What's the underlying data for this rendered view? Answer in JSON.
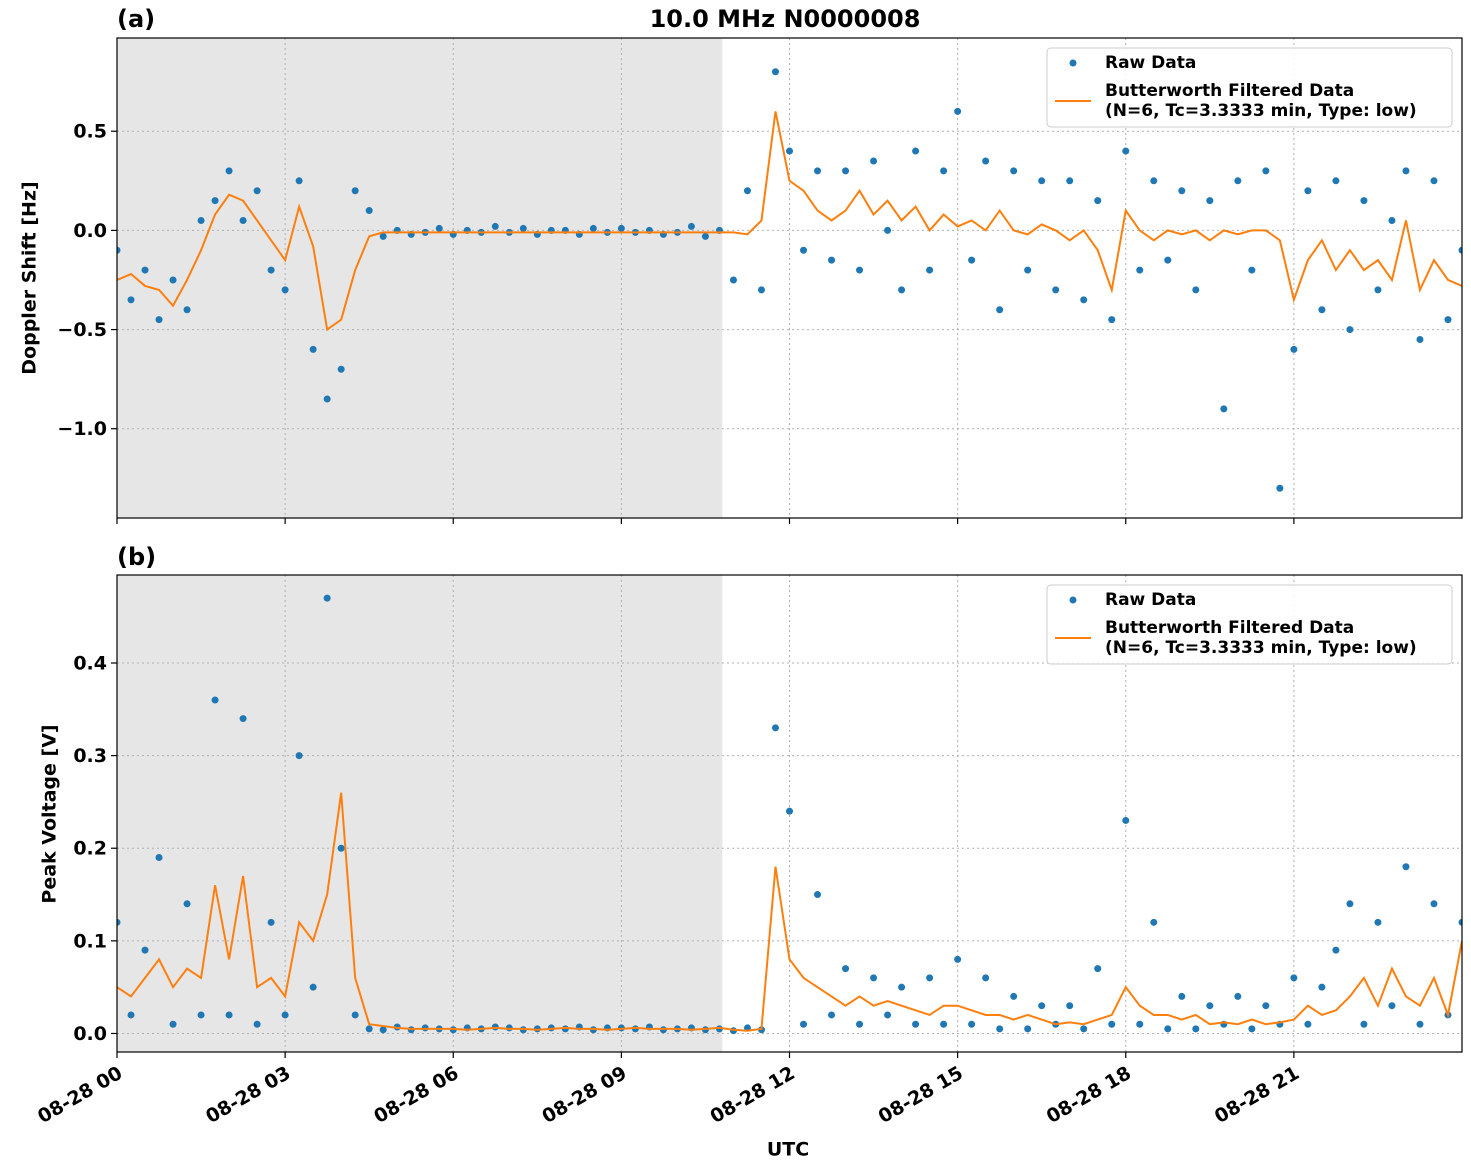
{
  "chart_data": [
    {
      "type": "line",
      "title": "10.0 MHz N0000008",
      "panel_label": "(a)",
      "ylabel": "Doppler Shift [Hz]",
      "xlim": [
        0,
        24
      ],
      "xticks": [
        0,
        3,
        6,
        9,
        12,
        15,
        18,
        21
      ],
      "ylim": [
        -1.45,
        0.97
      ],
      "yticks": [
        {
          "value": -1.0,
          "label": "−1.0"
        },
        {
          "value": -0.5,
          "label": "−0.5"
        },
        {
          "value": 0.0,
          "label": "0.0"
        },
        {
          "value": 0.5,
          "label": "0.5"
        }
      ],
      "grid": true,
      "legend": "upper right",
      "shaded_span": [
        0,
        10.8
      ],
      "shade_color": "#e6e6e6",
      "x": [
        0,
        0.25,
        0.5,
        0.75,
        1,
        1.25,
        1.5,
        1.75,
        2,
        2.25,
        2.5,
        2.75,
        3,
        3.25,
        3.5,
        3.75,
        4,
        4.25,
        4.5,
        4.75,
        5,
        5.25,
        5.5,
        5.75,
        6,
        6.25,
        6.5,
        6.75,
        7,
        7.25,
        7.5,
        7.75,
        8,
        8.25,
        8.5,
        8.75,
        9,
        9.25,
        9.5,
        9.75,
        10,
        10.25,
        10.5,
        10.75,
        11,
        11.25,
        11.5,
        11.75,
        12,
        12.25,
        12.5,
        12.75,
        13,
        13.25,
        13.5,
        13.75,
        14,
        14.25,
        14.5,
        14.75,
        15,
        15.25,
        15.5,
        15.75,
        16,
        16.25,
        16.5,
        16.75,
        17,
        17.25,
        17.5,
        17.75,
        18,
        18.25,
        18.5,
        18.75,
        19,
        19.25,
        19.5,
        19.75,
        20,
        20.25,
        20.5,
        20.75,
        21,
        21.25,
        21.5,
        21.75,
        22,
        22.25,
        22.5,
        22.75,
        23,
        23.25,
        23.5,
        23.75,
        24
      ],
      "series": [
        {
          "name": "Raw Data",
          "type": "scatter",
          "color": "#1f77b4",
          "values": [
            -0.1,
            -0.35,
            -0.2,
            -0.45,
            -0.25,
            -0.4,
            0.05,
            0.15,
            0.3,
            0.05,
            0.2,
            -0.2,
            -0.3,
            0.25,
            -0.6,
            -0.85,
            -0.7,
            0.2,
            0.1,
            -0.03,
            0.0,
            -0.02,
            -0.01,
            0.01,
            -0.02,
            0.0,
            -0.01,
            0.02,
            -0.01,
            0.01,
            -0.02,
            0.0,
            0.0,
            -0.02,
            0.01,
            -0.01,
            0.01,
            -0.01,
            0.0,
            -0.02,
            -0.01,
            0.02,
            -0.03,
            0.0,
            -0.25,
            0.2,
            -0.3,
            0.8,
            0.4,
            -0.1,
            0.3,
            -0.15,
            0.3,
            -0.2,
            0.35,
            0.0,
            -0.3,
            0.4,
            -0.2,
            0.3,
            0.6,
            -0.15,
            0.35,
            -0.4,
            0.3,
            -0.2,
            0.25,
            -0.3,
            0.25,
            -0.35,
            0.15,
            -0.45,
            0.4,
            -0.2,
            0.25,
            -0.15,
            0.2,
            -0.3,
            0.15,
            -0.9,
            0.25,
            -0.2,
            0.3,
            -1.3,
            -0.6,
            0.2,
            -0.4,
            0.25,
            -0.5,
            0.15,
            -0.3,
            0.05,
            0.3,
            -0.55,
            0.25,
            -0.45,
            -0.1
          ]
        },
        {
          "name": "Butterworth Filtered Data\n(N=6, Tc=3.3333 min, Type: low)",
          "type": "line",
          "color": "#ff7f0e",
          "values": [
            -0.25,
            -0.22,
            -0.28,
            -0.3,
            -0.38,
            -0.25,
            -0.1,
            0.08,
            0.18,
            0.15,
            0.05,
            -0.05,
            -0.15,
            0.12,
            -0.08,
            -0.5,
            -0.45,
            -0.2,
            -0.03,
            -0.01,
            -0.01,
            -0.01,
            -0.01,
            -0.01,
            -0.01,
            -0.01,
            -0.01,
            -0.01,
            -0.01,
            -0.01,
            -0.01,
            -0.01,
            -0.01,
            -0.01,
            -0.01,
            -0.01,
            -0.01,
            -0.01,
            -0.01,
            -0.01,
            -0.01,
            -0.01,
            -0.01,
            -0.01,
            -0.01,
            -0.02,
            0.05,
            0.6,
            0.25,
            0.2,
            0.1,
            0.05,
            0.1,
            0.2,
            0.08,
            0.15,
            0.05,
            0.12,
            0.0,
            0.08,
            0.02,
            0.05,
            0.0,
            0.1,
            0.0,
            -0.02,
            0.03,
            0.0,
            -0.05,
            0.0,
            -0.1,
            -0.3,
            0.1,
            0.0,
            -0.05,
            0.0,
            -0.02,
            0.0,
            -0.05,
            0.0,
            -0.02,
            0.0,
            0.0,
            -0.05,
            -0.35,
            -0.15,
            -0.05,
            -0.2,
            -0.1,
            -0.2,
            -0.15,
            -0.25,
            0.05,
            -0.3,
            -0.15,
            -0.25,
            -0.28
          ]
        }
      ]
    },
    {
      "type": "line",
      "panel_label": "(b)",
      "ylabel": "Peak Voltage [V]",
      "xlabel": "UTC",
      "xlim": [
        0,
        24
      ],
      "xticks": [
        {
          "value": 0,
          "label": "08-28 00"
        },
        {
          "value": 3,
          "label": "08-28 03"
        },
        {
          "value": 6,
          "label": "08-28 06"
        },
        {
          "value": 9,
          "label": "08-28 09"
        },
        {
          "value": 12,
          "label": "08-28 12"
        },
        {
          "value": 15,
          "label": "08-28 15"
        },
        {
          "value": 18,
          "label": "08-28 18"
        },
        {
          "value": 21,
          "label": "08-28 21"
        }
      ],
      "ylim": [
        -0.02,
        0.495
      ],
      "yticks": [
        {
          "value": 0.0,
          "label": "0.0"
        },
        0.1,
        0.2,
        0.3,
        0.4
      ],
      "grid": true,
      "legend": "upper right",
      "shaded_span": [
        0,
        10.8
      ],
      "shade_color": "#e6e6e6",
      "x": [
        0,
        0.25,
        0.5,
        0.75,
        1,
        1.25,
        1.5,
        1.75,
        2,
        2.25,
        2.5,
        2.75,
        3,
        3.25,
        3.5,
        3.75,
        4,
        4.25,
        4.5,
        4.75,
        5,
        5.25,
        5.5,
        5.75,
        6,
        6.25,
        6.5,
        6.75,
        7,
        7.25,
        7.5,
        7.75,
        8,
        8.25,
        8.5,
        8.75,
        9,
        9.25,
        9.5,
        9.75,
        10,
        10.25,
        10.5,
        10.75,
        11,
        11.25,
        11.5,
        11.75,
        12,
        12.25,
        12.5,
        12.75,
        13,
        13.25,
        13.5,
        13.75,
        14,
        14.25,
        14.5,
        14.75,
        15,
        15.25,
        15.5,
        15.75,
        16,
        16.25,
        16.5,
        16.75,
        17,
        17.25,
        17.5,
        17.75,
        18,
        18.25,
        18.5,
        18.75,
        19,
        19.25,
        19.5,
        19.75,
        20,
        20.25,
        20.5,
        20.75,
        21,
        21.25,
        21.5,
        21.75,
        22,
        22.25,
        22.5,
        22.75,
        23,
        23.25,
        23.5,
        23.75,
        24
      ],
      "series": [
        {
          "name": "Raw Data",
          "type": "scatter",
          "color": "#1f77b4",
          "values": [
            0.12,
            0.02,
            0.09,
            0.19,
            0.01,
            0.14,
            0.02,
            0.36,
            0.02,
            0.34,
            0.01,
            0.12,
            0.02,
            0.3,
            0.05,
            0.47,
            0.2,
            0.02,
            0.005,
            0.004,
            0.007,
            0.004,
            0.006,
            0.005,
            0.004,
            0.006,
            0.005,
            0.007,
            0.006,
            0.004,
            0.005,
            0.006,
            0.005,
            0.007,
            0.004,
            0.006,
            0.006,
            0.005,
            0.007,
            0.004,
            0.005,
            0.006,
            0.004,
            0.005,
            0.003,
            0.006,
            0.004,
            0.33,
            0.24,
            0.01,
            0.15,
            0.02,
            0.07,
            0.01,
            0.06,
            0.02,
            0.05,
            0.01,
            0.06,
            0.01,
            0.08,
            0.01,
            0.06,
            0.005,
            0.04,
            0.005,
            0.03,
            0.01,
            0.03,
            0.005,
            0.07,
            0.01,
            0.23,
            0.01,
            0.12,
            0.005,
            0.04,
            0.005,
            0.03,
            0.01,
            0.04,
            0.005,
            0.03,
            0.01,
            0.06,
            0.01,
            0.05,
            0.09,
            0.14,
            0.01,
            0.12,
            0.03,
            0.18,
            0.01,
            0.14,
            0.02,
            0.12
          ]
        },
        {
          "name": "Butterworth Filtered Data\n(N=6, Tc=3.3333 min, Type: low)",
          "type": "line",
          "color": "#ff7f0e",
          "values": [
            0.05,
            0.04,
            0.06,
            0.08,
            0.05,
            0.07,
            0.06,
            0.16,
            0.08,
            0.17,
            0.05,
            0.06,
            0.04,
            0.12,
            0.1,
            0.15,
            0.26,
            0.06,
            0.01,
            0.008,
            0.006,
            0.005,
            0.005,
            0.005,
            0.005,
            0.004,
            0.005,
            0.006,
            0.005,
            0.005,
            0.004,
            0.005,
            0.006,
            0.005,
            0.005,
            0.004,
            0.005,
            0.006,
            0.005,
            0.005,
            0.005,
            0.004,
            0.005,
            0.006,
            0.004,
            0.003,
            0.005,
            0.18,
            0.08,
            0.06,
            0.05,
            0.04,
            0.03,
            0.04,
            0.03,
            0.035,
            0.03,
            0.025,
            0.02,
            0.03,
            0.03,
            0.025,
            0.02,
            0.02,
            0.015,
            0.02,
            0.015,
            0.01,
            0.012,
            0.01,
            0.015,
            0.02,
            0.05,
            0.03,
            0.02,
            0.02,
            0.015,
            0.02,
            0.01,
            0.012,
            0.01,
            0.015,
            0.01,
            0.012,
            0.015,
            0.03,
            0.02,
            0.025,
            0.04,
            0.06,
            0.03,
            0.07,
            0.04,
            0.03,
            0.06,
            0.02,
            0.1
          ]
        }
      ]
    }
  ]
}
